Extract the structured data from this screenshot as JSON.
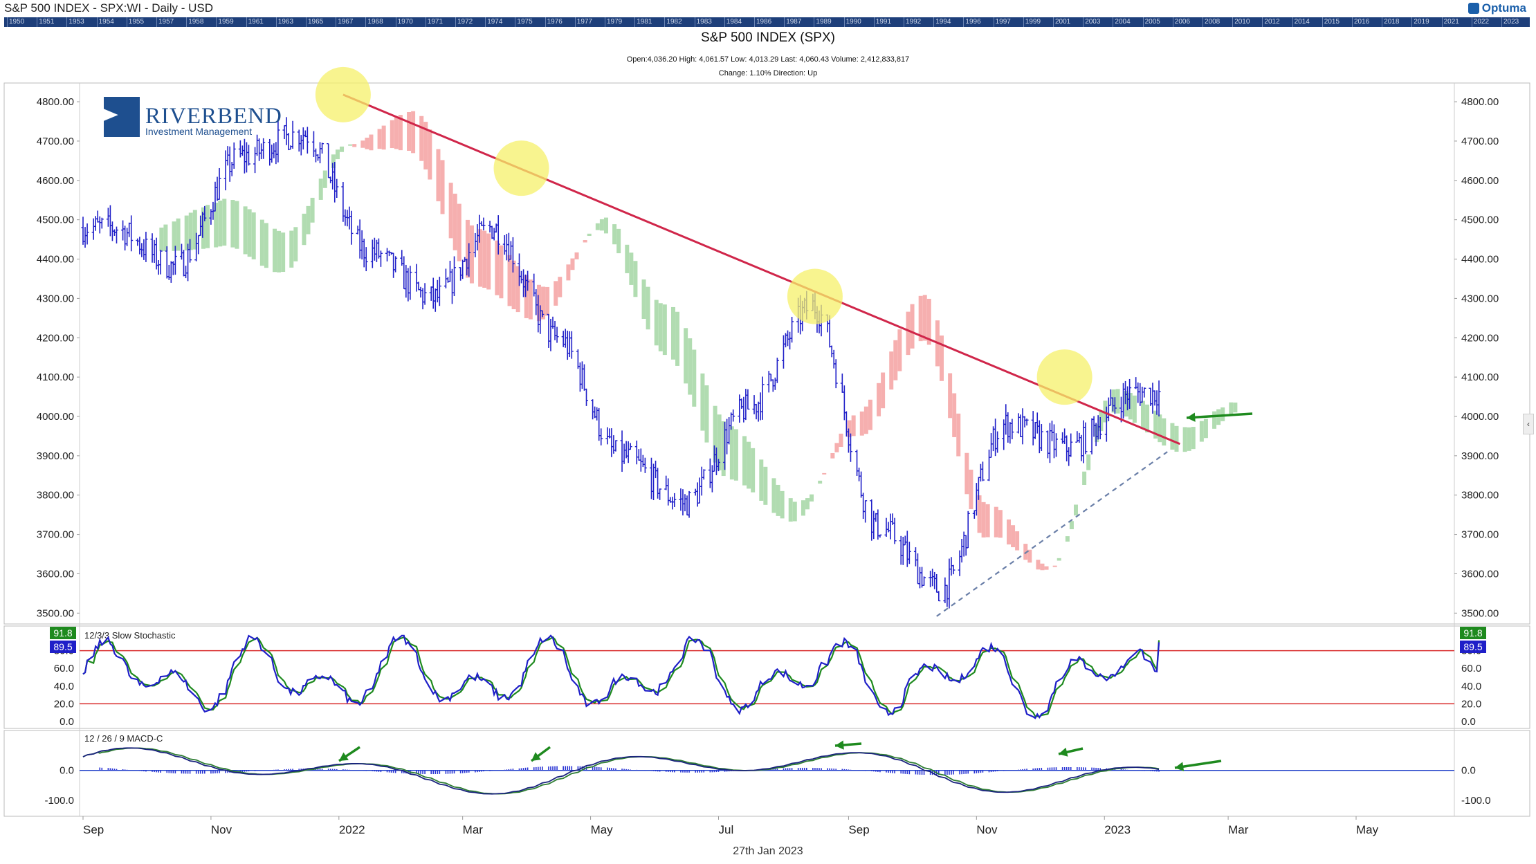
{
  "window_title": "S&P 500 INDEX - SPX:WI - Daily - USD",
  "brand": "Optuma",
  "timeline_years": [
    "1950",
    "1951",
    "1953",
    "1954",
    "1955",
    "1957",
    "1958",
    "1959",
    "1961",
    "1963",
    "1965",
    "1967",
    "1968",
    "1970",
    "1971",
    "1972",
    "1974",
    "1975",
    "1976",
    "1977",
    "1979",
    "1981",
    "1982",
    "1983",
    "1984",
    "1986",
    "1987",
    "1989",
    "1990",
    "1991",
    "1992",
    "1994",
    "1996",
    "1997",
    "1999",
    "2001",
    "2003",
    "2004",
    "2005",
    "2006",
    "2008",
    "2010",
    "2012",
    "2014",
    "2015",
    "2016",
    "2018",
    "2019",
    "2021",
    "2022",
    "2023"
  ],
  "logo": {
    "name": "RIVERBEND",
    "tagline": "Investment Management"
  },
  "header": {
    "title": "S&P 500 INDEX (SPX)",
    "ohlc_line": "Open:4,036.20   High: 4,061.57   Low: 4,013.29   Last: 4,060.43   Volume: 2,412,833,817",
    "change_line": "Change: 1.10%   Direction: Up"
  },
  "footer_date": "27th Jan 2023",
  "colors": {
    "bar": "#1f1fc8",
    "trend": "#d0264a",
    "support": "#6a7fa8",
    "cloud_green": "#a8d8a8",
    "cloud_red": "#f5a6a6",
    "highlight": "#f5f06a",
    "arrow": "#1e8a1e",
    "stoch_k": "#1f1fc8",
    "stoch_d": "#1e8a1e",
    "ref_line": "#d92b2b",
    "macd_line": "#1a237e",
    "signal_line": "#2e7d32",
    "hist": "#2833d4"
  },
  "chart_data": [
    {
      "type": "ohlc",
      "title": "S&P 500 INDEX (SPX)",
      "x_tick_labels": [
        "Sep",
        "Nov",
        "2022",
        "Mar",
        "May",
        "Jul",
        "Sep",
        "Nov",
        "2023",
        "Mar",
        "May"
      ],
      "y_tick_labels": [
        "4800.00",
        "4700.00",
        "4600.00",
        "4500.00",
        "4400.00",
        "4300.00",
        "4200.00",
        "4100.00",
        "4000.00",
        "3900.00",
        "3800.00",
        "3700.00",
        "3600.00",
        "3500.00"
      ],
      "ylim": [
        3490,
        4830
      ],
      "x": [
        "2021-09",
        "2021-10",
        "2021-11",
        "2021-12",
        "2022-01",
        "2022-02",
        "2022-03",
        "2022-04",
        "2022-05",
        "2022-06",
        "2022-07",
        "2022-08",
        "2022-09",
        "2022-10",
        "2022-11",
        "2022-12",
        "2023-01"
      ],
      "close": [
        4480,
        4380,
        4660,
        4720,
        4420,
        4300,
        4480,
        4200,
        3900,
        3780,
        4020,
        4280,
        3720,
        3560,
        3980,
        3920,
        4060
      ],
      "last": {
        "open": 4036.2,
        "high": 4061.57,
        "low": 4013.29,
        "last": 4060.43
      },
      "trendline": {
        "from": {
          "date": "2022-01-03",
          "value": 4818
        },
        "to": {
          "date": "2023-02-06",
          "value": 3930
        }
      },
      "support_line": {
        "from": {
          "date": "2022-10-13",
          "value": 3492
        },
        "to": {
          "date": "2023-01-31",
          "value": 3910
        }
      },
      "touch_points": [
        {
          "date": "2022-01-03",
          "value": 4818
        },
        {
          "date": "2022-03-29",
          "value": 4631
        },
        {
          "date": "2022-08-16",
          "value": 4305
        },
        {
          "date": "2022-12-13",
          "value": 4100
        }
      ]
    },
    {
      "type": "line",
      "title": "12/3/3 Slow Stochastic",
      "y_tick_labels": [
        "80.0",
        "60.0",
        "40.0",
        "20.0",
        "0.0"
      ],
      "ylim": [
        0,
        100
      ],
      "reference_lines": [
        80,
        20
      ],
      "series": [
        {
          "name": "%K",
          "last": 89.5
        },
        {
          "name": "%D",
          "last": 91.8
        }
      ]
    },
    {
      "type": "line",
      "title": "12 / 26 / 9 MACD-C",
      "y_tick_labels": [
        "0.0",
        "-100.0"
      ],
      "ylim": [
        -130,
        110
      ]
    }
  ]
}
